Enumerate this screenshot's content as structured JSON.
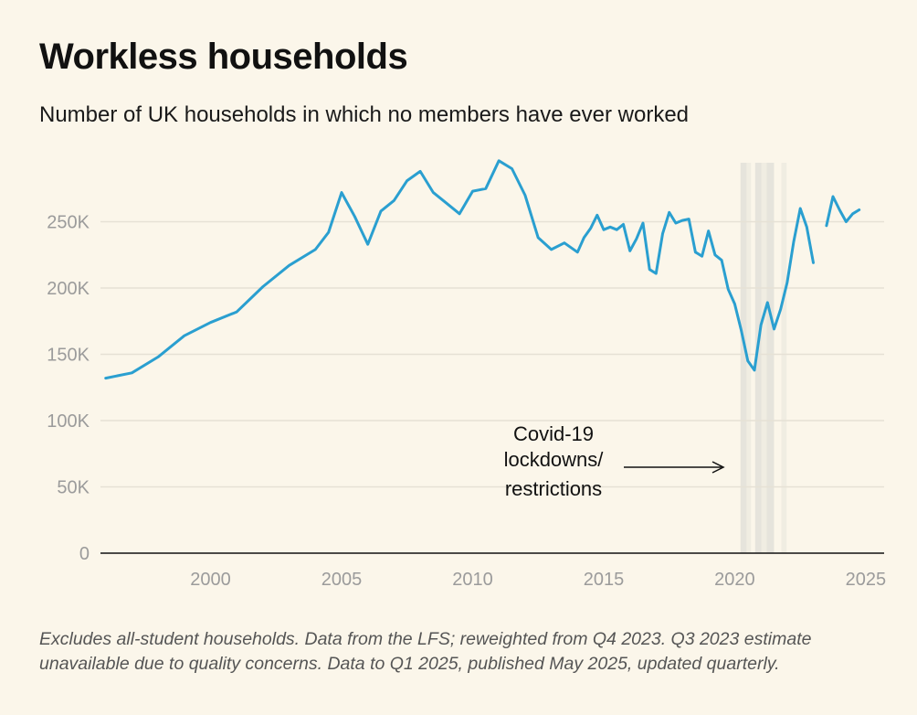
{
  "title": "Workless households",
  "subtitle": "Number of UK households in which no members have ever worked",
  "footnote": "Excludes all-student households. Data from the LFS; reweighted from Q4 2023. Q3 2023 estimate unavailable due to quality concerns. Data to Q1 2025, published May 2025, updated quarterly.",
  "colors": {
    "line": "#2a9fd0",
    "background": "#fbf6ea",
    "covid_band": "#d6d6d0"
  },
  "chart_data": {
    "type": "line",
    "title": "Workless households",
    "xlabel": "",
    "ylabel": "",
    "xlim": [
      1995.8,
      2025.7
    ],
    "ylim": [
      0,
      300000
    ],
    "grid": true,
    "y_ticks": [
      0,
      50000,
      100000,
      150000,
      200000,
      250000
    ],
    "y_tick_labels": [
      "0",
      "50K",
      "100K",
      "150K",
      "200K",
      "250K"
    ],
    "x_ticks": [
      2000,
      2005,
      2010,
      2015,
      2020,
      2025
    ],
    "x_tick_labels": [
      "2000",
      "2005",
      "2010",
      "2015",
      "2020",
      "2025"
    ],
    "series": [
      {
        "segments": [
          [
            [
              1996.0,
              132000
            ],
            [
              1997.0,
              136000
            ],
            [
              1998.0,
              148000
            ],
            [
              1999.0,
              164000
            ],
            [
              2000.0,
              174000
            ],
            [
              2001.0,
              182000
            ],
            [
              2002.0,
              201000
            ],
            [
              2003.0,
              217000
            ],
            [
              2004.0,
              229000
            ],
            [
              2004.5,
              242000
            ],
            [
              2005.0,
              272000
            ],
            [
              2005.5,
              254000
            ],
            [
              2006.0,
              233000
            ],
            [
              2006.5,
              258000
            ],
            [
              2007.0,
              266000
            ],
            [
              2007.5,
              281000
            ],
            [
              2008.0,
              288000
            ],
            [
              2008.5,
              272000
            ],
            [
              2009.0,
              264000
            ],
            [
              2009.5,
              256000
            ],
            [
              2010.0,
              273000
            ],
            [
              2010.5,
              275000
            ],
            [
              2011.0,
              296000
            ],
            [
              2011.5,
              290000
            ],
            [
              2012.0,
              270000
            ],
            [
              2012.5,
              238000
            ],
            [
              2013.0,
              229000
            ],
            [
              2013.5,
              234000
            ],
            [
              2014.0,
              227000
            ],
            [
              2014.25,
              238000
            ],
            [
              2014.5,
              245000
            ],
            [
              2014.75,
              255000
            ],
            [
              2015.0,
              244000
            ],
            [
              2015.25,
              246000
            ],
            [
              2015.5,
              244000
            ],
            [
              2015.75,
              248000
            ],
            [
              2016.0,
              228000
            ],
            [
              2016.25,
              237000
            ],
            [
              2016.5,
              249000
            ],
            [
              2016.75,
              214000
            ],
            [
              2017.0,
              211000
            ],
            [
              2017.25,
              241000
            ],
            [
              2017.5,
              257000
            ],
            [
              2017.75,
              249000
            ],
            [
              2018.0,
              251000
            ],
            [
              2018.25,
              252000
            ],
            [
              2018.5,
              227000
            ],
            [
              2018.75,
              224000
            ],
            [
              2019.0,
              243000
            ],
            [
              2019.25,
              225000
            ],
            [
              2019.5,
              221000
            ],
            [
              2019.75,
              199000
            ],
            [
              2020.0,
              188000
            ],
            [
              2020.25,
              168000
            ],
            [
              2020.5,
              145000
            ],
            [
              2020.75,
              138000
            ],
            [
              2021.0,
              172000
            ],
            [
              2021.25,
              189000
            ],
            [
              2021.5,
              169000
            ],
            [
              2021.75,
              184000
            ],
            [
              2022.0,
              204000
            ],
            [
              2022.25,
              235000
            ],
            [
              2022.5,
              260000
            ],
            [
              2022.75,
              246000
            ],
            [
              2023.0,
              219000
            ]
          ],
          [
            [
              2023.5,
              247000
            ],
            [
              2023.75,
              269000
            ],
            [
              2024.0,
              259000
            ],
            [
              2024.25,
              250000
            ],
            [
              2024.5,
              256000
            ],
            [
              2024.75,
              259000
            ]
          ]
        ]
      }
    ],
    "covid_periods": [
      {
        "start": 2020.22,
        "end": 2020.45
      },
      {
        "start": 2020.45,
        "end": 2020.62
      },
      {
        "start": 2020.78,
        "end": 2021.02
      },
      {
        "start": 2021.02,
        "end": 2021.22
      },
      {
        "start": 2021.22,
        "end": 2021.5
      },
      {
        "start": 2021.78,
        "end": 2021.98
      }
    ],
    "annotation": {
      "lines": [
        "Covid-19",
        "lockdowns/",
        "restrictions"
      ]
    }
  }
}
